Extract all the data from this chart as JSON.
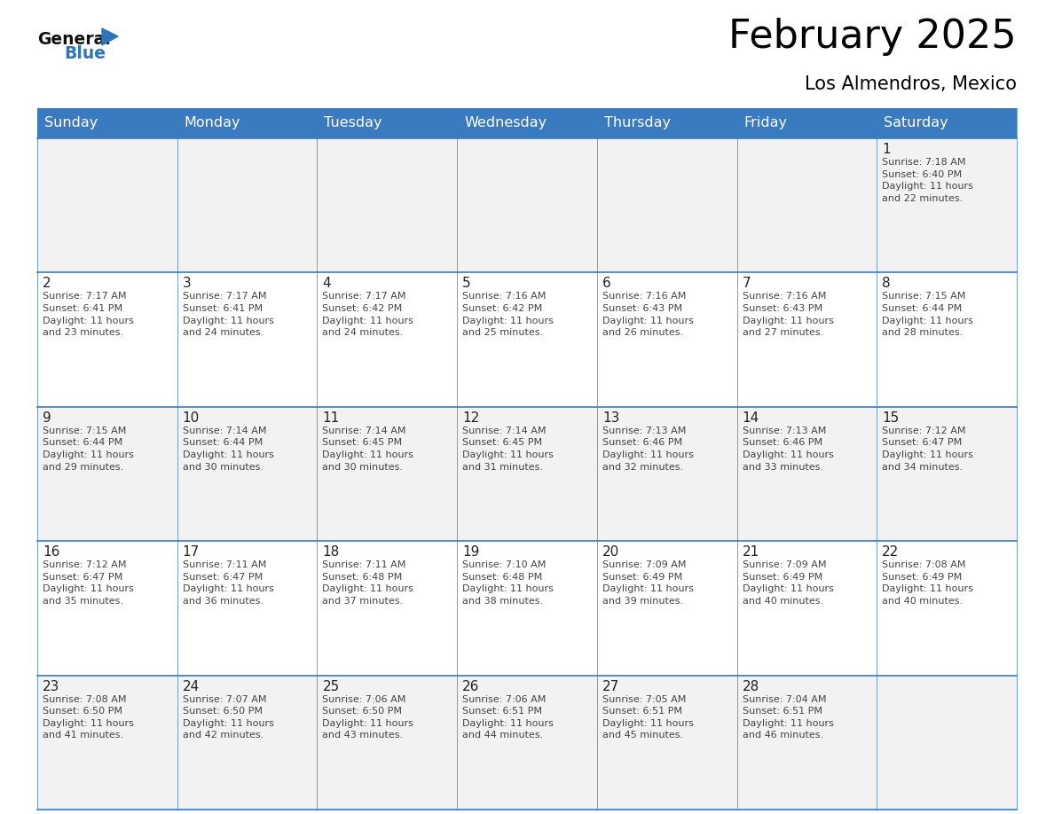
{
  "title": "February 2025",
  "subtitle": "Los Almendros, Mexico",
  "header_bg": "#3a7bbf",
  "header_text_color": "#ffffff",
  "days_of_week": [
    "Sunday",
    "Monday",
    "Tuesday",
    "Wednesday",
    "Thursday",
    "Friday",
    "Saturday"
  ],
  "weeks": [
    [
      {
        "day": null,
        "info": null
      },
      {
        "day": null,
        "info": null
      },
      {
        "day": null,
        "info": null
      },
      {
        "day": null,
        "info": null
      },
      {
        "day": null,
        "info": null
      },
      {
        "day": null,
        "info": null
      },
      {
        "day": "1",
        "info": "Sunrise: 7:18 AM\nSunset: 6:40 PM\nDaylight: 11 hours\nand 22 minutes."
      }
    ],
    [
      {
        "day": "2",
        "info": "Sunrise: 7:17 AM\nSunset: 6:41 PM\nDaylight: 11 hours\nand 23 minutes."
      },
      {
        "day": "3",
        "info": "Sunrise: 7:17 AM\nSunset: 6:41 PM\nDaylight: 11 hours\nand 24 minutes."
      },
      {
        "day": "4",
        "info": "Sunrise: 7:17 AM\nSunset: 6:42 PM\nDaylight: 11 hours\nand 24 minutes."
      },
      {
        "day": "5",
        "info": "Sunrise: 7:16 AM\nSunset: 6:42 PM\nDaylight: 11 hours\nand 25 minutes."
      },
      {
        "day": "6",
        "info": "Sunrise: 7:16 AM\nSunset: 6:43 PM\nDaylight: 11 hours\nand 26 minutes."
      },
      {
        "day": "7",
        "info": "Sunrise: 7:16 AM\nSunset: 6:43 PM\nDaylight: 11 hours\nand 27 minutes."
      },
      {
        "day": "8",
        "info": "Sunrise: 7:15 AM\nSunset: 6:44 PM\nDaylight: 11 hours\nand 28 minutes."
      }
    ],
    [
      {
        "day": "9",
        "info": "Sunrise: 7:15 AM\nSunset: 6:44 PM\nDaylight: 11 hours\nand 29 minutes."
      },
      {
        "day": "10",
        "info": "Sunrise: 7:14 AM\nSunset: 6:44 PM\nDaylight: 11 hours\nand 30 minutes."
      },
      {
        "day": "11",
        "info": "Sunrise: 7:14 AM\nSunset: 6:45 PM\nDaylight: 11 hours\nand 30 minutes."
      },
      {
        "day": "12",
        "info": "Sunrise: 7:14 AM\nSunset: 6:45 PM\nDaylight: 11 hours\nand 31 minutes."
      },
      {
        "day": "13",
        "info": "Sunrise: 7:13 AM\nSunset: 6:46 PM\nDaylight: 11 hours\nand 32 minutes."
      },
      {
        "day": "14",
        "info": "Sunrise: 7:13 AM\nSunset: 6:46 PM\nDaylight: 11 hours\nand 33 minutes."
      },
      {
        "day": "15",
        "info": "Sunrise: 7:12 AM\nSunset: 6:47 PM\nDaylight: 11 hours\nand 34 minutes."
      }
    ],
    [
      {
        "day": "16",
        "info": "Sunrise: 7:12 AM\nSunset: 6:47 PM\nDaylight: 11 hours\nand 35 minutes."
      },
      {
        "day": "17",
        "info": "Sunrise: 7:11 AM\nSunset: 6:47 PM\nDaylight: 11 hours\nand 36 minutes."
      },
      {
        "day": "18",
        "info": "Sunrise: 7:11 AM\nSunset: 6:48 PM\nDaylight: 11 hours\nand 37 minutes."
      },
      {
        "day": "19",
        "info": "Sunrise: 7:10 AM\nSunset: 6:48 PM\nDaylight: 11 hours\nand 38 minutes."
      },
      {
        "day": "20",
        "info": "Sunrise: 7:09 AM\nSunset: 6:49 PM\nDaylight: 11 hours\nand 39 minutes."
      },
      {
        "day": "21",
        "info": "Sunrise: 7:09 AM\nSunset: 6:49 PM\nDaylight: 11 hours\nand 40 minutes."
      },
      {
        "day": "22",
        "info": "Sunrise: 7:08 AM\nSunset: 6:49 PM\nDaylight: 11 hours\nand 40 minutes."
      }
    ],
    [
      {
        "day": "23",
        "info": "Sunrise: 7:08 AM\nSunset: 6:50 PM\nDaylight: 11 hours\nand 41 minutes."
      },
      {
        "day": "24",
        "info": "Sunrise: 7:07 AM\nSunset: 6:50 PM\nDaylight: 11 hours\nand 42 minutes."
      },
      {
        "day": "25",
        "info": "Sunrise: 7:06 AM\nSunset: 6:50 PM\nDaylight: 11 hours\nand 43 minutes."
      },
      {
        "day": "26",
        "info": "Sunrise: 7:06 AM\nSunset: 6:51 PM\nDaylight: 11 hours\nand 44 minutes."
      },
      {
        "day": "27",
        "info": "Sunrise: 7:05 AM\nSunset: 6:51 PM\nDaylight: 11 hours\nand 45 minutes."
      },
      {
        "day": "28",
        "info": "Sunrise: 7:04 AM\nSunset: 6:51 PM\nDaylight: 11 hours\nand 46 minutes."
      },
      {
        "day": null,
        "info": null
      }
    ]
  ],
  "cell_border_color": "#3a7bbf",
  "cell_bg_odd": "#f2f2f2",
  "cell_bg_even": "#ffffff",
  "logo_general_color": "#111111",
  "logo_blue_color": "#2e76b8",
  "logo_triangle_color": "#2e76b8",
  "title_font_size": 32,
  "subtitle_font_size": 15,
  "header_font_size": 11.5,
  "day_number_font_size": 11,
  "cell_text_font_size": 8.0,
  "logo_font_size": 13.5
}
